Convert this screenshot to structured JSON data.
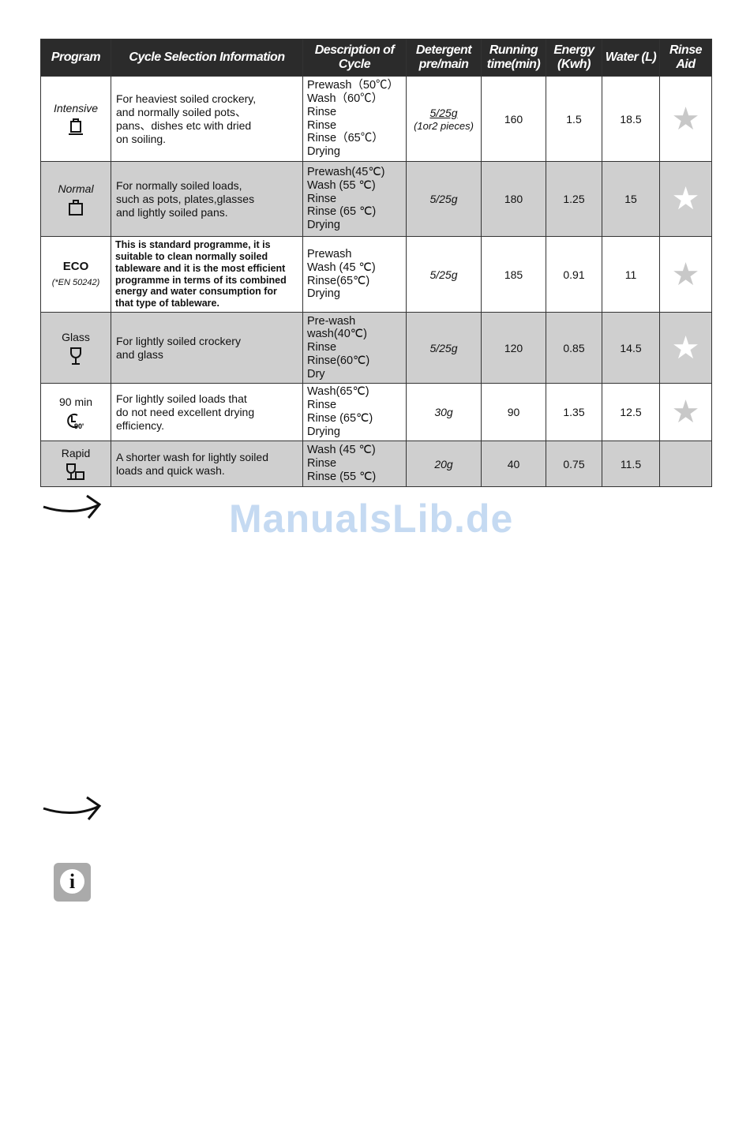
{
  "headers": [
    "Program",
    "Cycle Selection Information",
    "Description of Cycle",
    "Detergent pre/main",
    "Running time(min)",
    "Energy (Kwh)",
    "Water (L)",
    "Rinse Aid"
  ],
  "rows": [
    {
      "program": "Intensive",
      "icon": "pot-with-base-icon",
      "info": [
        "For heaviest soiled crockery,",
        "and normally soiled pots、",
        "pans、dishes etc with dried",
        "on soiling."
      ],
      "desc": [
        "Prewash（50℃）",
        "Wash（60℃）",
        "Rinse",
        "Rinse",
        "Rinse（65℃）",
        "Drying"
      ],
      "detergent": "5/25g",
      "detergent_note": "(1or2 pieces)",
      "time": "160",
      "energy": "1.5",
      "water": "18.5",
      "rinse_aid": true
    },
    {
      "program": "Normal",
      "icon": "pot-icon",
      "info": [
        "For normally soiled loads,",
        "such as pots, plates,glasses",
        "and lightly soiled pans."
      ],
      "desc": [
        "Prewash(45℃)",
        "Wash (55 ℃)",
        "Rinse",
        "Rinse (65 ℃)",
        "Drying"
      ],
      "detergent": "5/25g",
      "time": "180",
      "energy": "1.25",
      "water": "15",
      "rinse_aid": true
    },
    {
      "program": "ECO",
      "program_note": "(*EN 50242)",
      "info": [
        "This is standard programme, it is",
        "suitable to clean normally soiled",
        "tableware and it is the most efficient",
        "programme in terms of its combined",
        "energy and water consumption for",
        "that type of tableware."
      ],
      "desc": [
        "Prewash",
        "Wash (45 ℃)",
        "Rinse(65℃)",
        "Drying"
      ],
      "detergent": "5/25g",
      "time": "185",
      "energy": "0.91",
      "water": "11",
      "rinse_aid": true
    },
    {
      "program": "Glass",
      "icon": "wine-glass-icon",
      "info": [
        "For lightly soiled crockery",
        "and glass"
      ],
      "desc": [
        "Pre-wash",
        "wash(40℃)",
        "Rinse",
        "Rinse(60℃)",
        "Dry"
      ],
      "detergent": "5/25g",
      "time": "120",
      "energy": "0.85",
      "water": "14.5",
      "rinse_aid": true
    },
    {
      "program": "90 min",
      "icon": "clock-90-icon",
      "icon_text": "90'",
      "info": [
        "For lightly soiled loads that",
        "do not need excellent drying",
        "efficiency."
      ],
      "desc": [
        "Wash(65℃)",
        "Rinse",
        "Rinse (65℃)",
        "Drying"
      ],
      "detergent": "30g",
      "time": "90",
      "energy": "1.35",
      "water": "12.5",
      "rinse_aid": true
    },
    {
      "program": "Rapid",
      "icon": "glass-and-cup-icon",
      "info": [
        "A shorter wash for lightly soiled",
        "loads and quick wash."
      ],
      "desc": [
        "Wash (45 ℃)",
        "Rinse",
        "Rinse (55 ℃)"
      ],
      "detergent": "20g",
      "time": "40",
      "energy": "0.75",
      "water": "11.5",
      "rinse_aid": false
    }
  ],
  "watermark": "ManualsLib.de",
  "icons": {
    "arrow": "arrow-right-icon",
    "info": "info-icon",
    "star": "star-icon"
  },
  "colors": {
    "header_bg": "#2b2b2b",
    "shaded_row": "#cfcfcf",
    "watermark": "#c5daf2"
  }
}
